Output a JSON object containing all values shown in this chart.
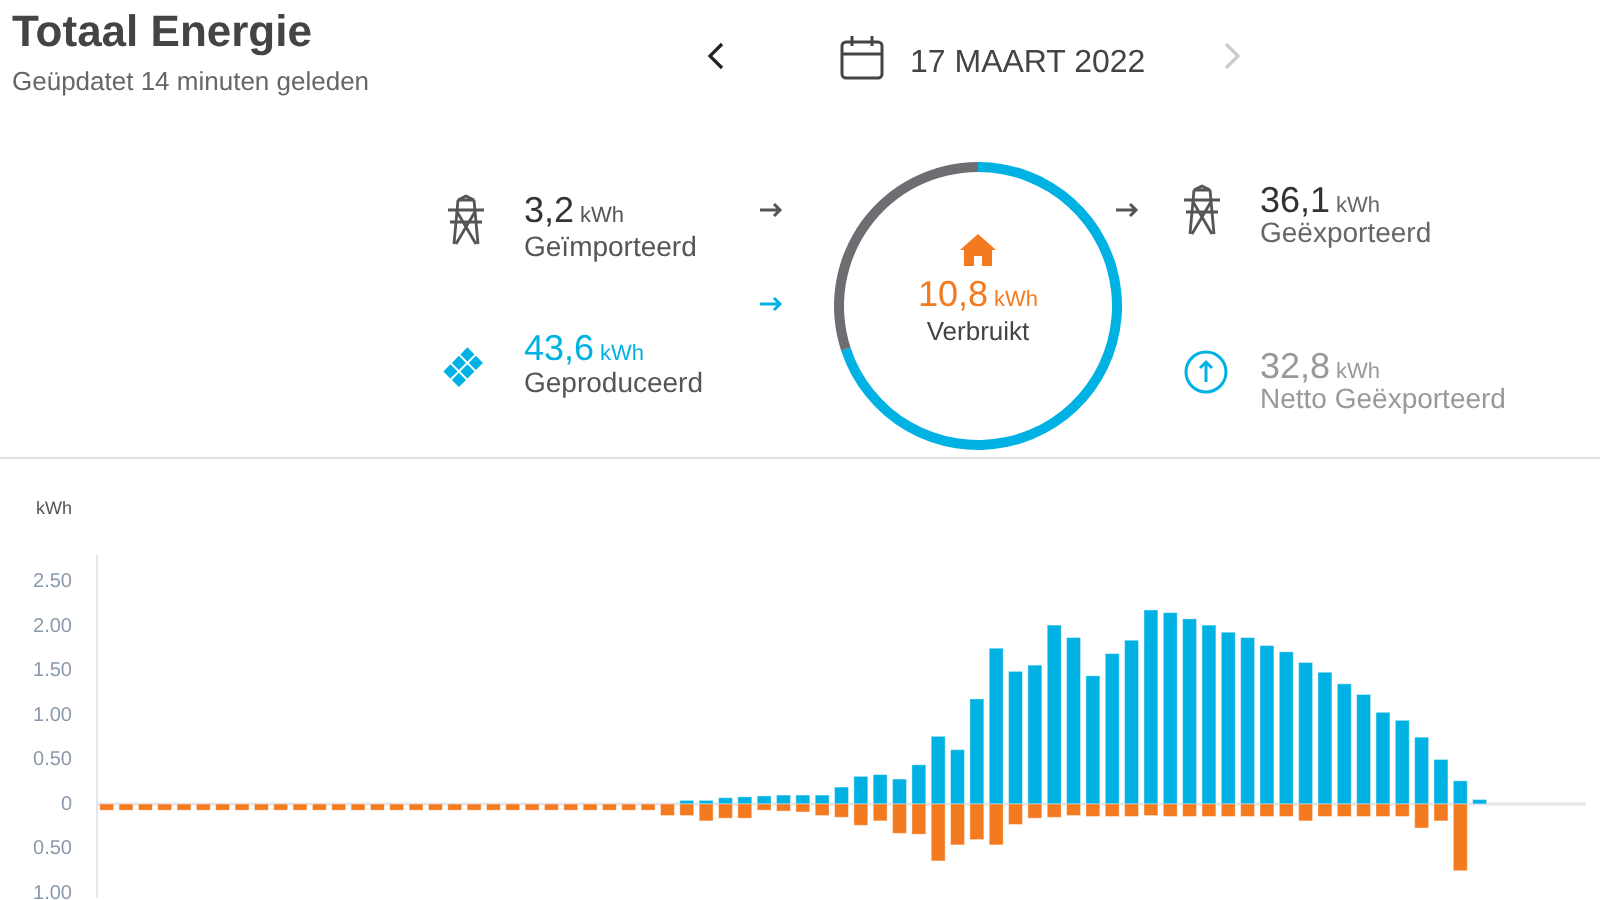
{
  "chart_data": [
    {
      "type": "other",
      "title": "Totaal Energie",
      "subtitle": "Geüpdatet 14 minuten geleden",
      "annotations": [
        "17 MAART 2022",
        "3,2",
        "kWh",
        "Geïmporteerd",
        "43,6",
        "kWh",
        "Geproduceerd",
        "36,1",
        "kWh",
        "Geëxporteerd",
        "32,8",
        "kWh",
        "Netto Geëxporteerd"
      ]
    },
    {
      "type": "donut",
      "categories": [
        null,
        null
      ],
      "values": [
        70,
        30
      ],
      "colors": [
        "#00b2e3",
        "#6d6e71"
      ],
      "annotations": [
        "10,8",
        "kWh",
        "Verbruikt"
      ]
    },
    {
      "type": "bar",
      "ylabel": "kWh",
      "stacked": true,
      "tick_labels": "y",
      "categories": [
        null,
        null,
        null,
        null,
        null,
        null,
        null,
        null,
        null,
        null,
        null,
        null,
        null,
        null,
        null,
        null,
        null,
        null,
        null,
        null,
        null,
        null,
        null,
        null,
        null,
        null,
        null,
        null,
        null,
        null,
        null,
        null,
        null,
        null,
        null,
        null,
        null,
        null,
        null,
        null,
        null,
        null,
        null,
        null,
        null,
        null,
        null,
        null,
        null,
        null,
        null,
        null,
        null,
        null,
        null,
        null,
        null,
        null,
        null,
        null,
        null,
        null,
        null,
        null,
        null,
        null,
        null,
        null,
        null,
        null,
        null,
        null,
        null,
        null,
        null,
        null,
        null
      ],
      "ylim": [
        -1.05,
        2.8
      ],
      "yticks": [
        {
          "value": -1,
          "label": "1.00"
        },
        {
          "value": -0.5,
          "label": "0.50"
        },
        0,
        {
          "value": 0.5,
          "label": "0.50"
        },
        {
          "value": 1,
          "label": "1.00"
        },
        {
          "value": 1.5,
          "label": "1.50"
        },
        {
          "value": 2,
          "label": "2.00"
        },
        {
          "value": 2.5,
          "label": "2.50"
        }
      ],
      "series": [
        {
          "color": "#00b2e3",
          "values": [
            null,
            null,
            null,
            null,
            null,
            null,
            null,
            null,
            null,
            null,
            null,
            null,
            null,
            null,
            null,
            null,
            null,
            null,
            null,
            null,
            null,
            null,
            null,
            null,
            null,
            null,
            null,
            null,
            null,
            null,
            0.04,
            0.04,
            0.07,
            0.08,
            0.09,
            0.1,
            0.1,
            0.1,
            0.19,
            0.31,
            0.33,
            0.28,
            0.44,
            0.76,
            0.61,
            1.18,
            1.75,
            1.49,
            1.56,
            2.01,
            1.87,
            1.44,
            1.69,
            1.84,
            2.18,
            2.15,
            2.08,
            2.01,
            1.93,
            1.87,
            1.78,
            1.71,
            1.59,
            1.48,
            1.35,
            1.23,
            1.03,
            0.94,
            0.75,
            0.5,
            0.26,
            0.05,
            null,
            null,
            null,
            null,
            null
          ]
        },
        {
          "color": "#f47a20",
          "values": [
            -0.07,
            -0.07,
            -0.07,
            -0.07,
            -0.07,
            -0.07,
            -0.07,
            -0.07,
            -0.07,
            -0.07,
            -0.07,
            -0.07,
            -0.07,
            -0.07,
            -0.07,
            -0.07,
            -0.07,
            -0.07,
            -0.07,
            -0.07,
            -0.07,
            -0.07,
            -0.07,
            -0.07,
            -0.07,
            -0.07,
            -0.07,
            -0.07,
            -0.07,
            -0.13,
            -0.13,
            -0.19,
            -0.16,
            -0.16,
            -0.07,
            -0.08,
            -0.09,
            -0.13,
            -0.15,
            -0.24,
            -0.19,
            -0.33,
            -0.34,
            -0.64,
            -0.46,
            -0.4,
            -0.46,
            -0.23,
            -0.16,
            -0.15,
            -0.13,
            -0.14,
            -0.14,
            -0.14,
            -0.13,
            -0.14,
            -0.14,
            -0.14,
            -0.14,
            -0.14,
            -0.14,
            -0.14,
            -0.19,
            -0.14,
            -0.14,
            -0.14,
            -0.14,
            -0.14,
            -0.27,
            -0.19,
            -0.75,
            null,
            null,
            null,
            null,
            null,
            null
          ]
        }
      ]
    }
  ]
}
